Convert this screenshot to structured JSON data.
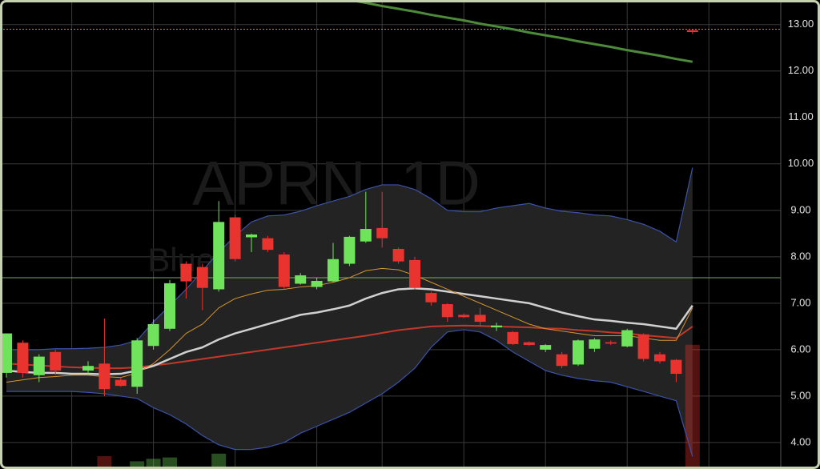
{
  "chart_data": {
    "type": "candlestick",
    "title": "APRN, 1D",
    "subtitle": "Blue Apron Holdings, Inc.",
    "up_color": "#6fe35b",
    "down_color": "#e8332f",
    "open": [
      5.5,
      6.15,
      5.45,
      5.95,
      null,
      5.55,
      5.7,
      5.35,
      5.2,
      6.08,
      6.45,
      7.85,
      7.78,
      7.3,
      8.85,
      8.42,
      8.4,
      8.05,
      7.42,
      7.35,
      7.47,
      7.85,
      8.33,
      8.62,
      8.17,
      7.93,
      7.22,
      6.98,
      6.75,
      6.75,
      6.48,
      6.38,
      6.16,
      6.0,
      5.9,
      5.68,
      6.02,
      6.16,
      6.07,
      6.33,
      5.9,
      5.78,
      12.88
    ],
    "high": [
      6.35,
      6.2,
      5.9,
      6.0,
      null,
      5.75,
      6.67,
      5.4,
      6.25,
      6.65,
      7.5,
      7.9,
      7.85,
      9.2,
      8.9,
      8.5,
      8.45,
      8.1,
      7.65,
      7.55,
      8.3,
      8.45,
      9.4,
      9.4,
      8.2,
      8.0,
      7.25,
      7.0,
      6.78,
      6.9,
      6.58,
      6.4,
      6.18,
      6.12,
      5.95,
      6.22,
      6.25,
      6.2,
      6.45,
      6.35,
      5.95,
      5.8,
      12.9
    ],
    "low": [
      5.4,
      5.4,
      5.3,
      5.45,
      null,
      5.45,
      5.0,
      5.2,
      5.05,
      6.0,
      6.4,
      7.1,
      6.85,
      7.25,
      7.9,
      8.1,
      8.1,
      7.3,
      7.4,
      7.3,
      7.45,
      7.8,
      8.3,
      8.2,
      7.85,
      7.3,
      6.95,
      6.6,
      6.68,
      6.5,
      6.4,
      6.1,
      6.08,
      5.95,
      5.6,
      5.65,
      5.95,
      6.1,
      6.05,
      5.75,
      5.7,
      5.3,
      12.8
    ],
    "close": [
      6.35,
      5.5,
      5.85,
      5.55,
      null,
      5.65,
      5.15,
      5.22,
      6.2,
      6.55,
      7.43,
      7.47,
      7.33,
      8.75,
      7.95,
      8.48,
      8.15,
      7.35,
      7.6,
      7.48,
      7.95,
      8.43,
      8.6,
      8.4,
      7.9,
      7.33,
      7.02,
      6.7,
      6.7,
      6.6,
      6.52,
      6.12,
      6.1,
      6.1,
      5.65,
      6.2,
      6.22,
      6.13,
      6.42,
      5.8,
      5.75,
      5.48,
      12.84
    ],
    "band_color": "#232323",
    "series": [
      {
        "color": "#3b52a8",
        "width": 1.2,
        "values": [
          6.0,
          6.0,
          6.0,
          6.02,
          6.02,
          6.03,
          6.05,
          6.1,
          6.2,
          6.6,
          6.95,
          7.3,
          7.7,
          8.1,
          8.45,
          8.75,
          8.88,
          8.9,
          8.98,
          9.1,
          9.2,
          9.3,
          9.45,
          9.55,
          9.55,
          9.45,
          9.25,
          9.0,
          8.97,
          8.97,
          9.05,
          9.1,
          9.15,
          9.05,
          8.98,
          8.95,
          8.9,
          8.88,
          8.8,
          8.7,
          8.55,
          8.32,
          9.92
        ]
      },
      {
        "color": "#3b52a8",
        "width": 1.2,
        "values": [
          5.1,
          5.1,
          5.1,
          5.1,
          5.1,
          5.08,
          5.05,
          5.0,
          4.95,
          4.75,
          4.6,
          4.4,
          4.15,
          3.95,
          3.85,
          3.85,
          3.9,
          4.0,
          4.2,
          4.35,
          4.5,
          4.65,
          4.85,
          5.05,
          5.3,
          5.6,
          6.05,
          6.38,
          6.43,
          6.38,
          6.2,
          5.95,
          5.75,
          5.55,
          5.45,
          5.38,
          5.33,
          5.3,
          5.2,
          5.1,
          5.0,
          4.9,
          3.7
        ]
      },
      {
        "color": "#c0392b",
        "width": 2,
        "values": [
          5.7,
          5.68,
          5.66,
          5.64,
          5.62,
          5.61,
          5.6,
          5.6,
          5.62,
          5.66,
          5.7,
          5.75,
          5.8,
          5.85,
          5.9,
          5.95,
          6.0,
          6.05,
          6.1,
          6.15,
          6.2,
          6.25,
          6.3,
          6.36,
          6.42,
          6.46,
          6.5,
          6.51,
          6.52,
          6.51,
          6.5,
          6.49,
          6.48,
          6.46,
          6.45,
          6.42,
          6.4,
          6.37,
          6.35,
          6.31,
          6.28,
          6.25,
          6.5
        ]
      },
      {
        "color": "#d0d0d0",
        "width": 2.5,
        "values": [
          5.55,
          5.52,
          5.5,
          5.5,
          5.48,
          5.48,
          5.47,
          5.48,
          5.55,
          5.65,
          5.8,
          5.95,
          6.05,
          6.22,
          6.35,
          6.45,
          6.55,
          6.65,
          6.75,
          6.8,
          6.87,
          6.95,
          7.1,
          7.22,
          7.3,
          7.32,
          7.3,
          7.25,
          7.2,
          7.15,
          7.1,
          7.05,
          7.0,
          6.9,
          6.8,
          6.72,
          6.65,
          6.62,
          6.58,
          6.55,
          6.5,
          6.45,
          6.95
        ]
      },
      {
        "color": "#d7952f",
        "width": 1,
        "values": [
          5.3,
          5.35,
          5.4,
          5.42,
          5.45,
          5.45,
          5.42,
          5.4,
          5.5,
          5.7,
          6.0,
          6.35,
          6.55,
          6.9,
          7.1,
          7.2,
          7.28,
          7.3,
          7.35,
          7.38,
          7.45,
          7.55,
          7.7,
          7.75,
          7.72,
          7.6,
          7.45,
          7.3,
          7.15,
          7.0,
          6.85,
          6.7,
          6.55,
          6.45,
          6.4,
          6.35,
          6.3,
          6.3,
          6.3,
          6.25,
          6.2,
          6.2,
          6.9
        ]
      },
      {
        "color": "#4d8a3a",
        "width": 3,
        "values": [
          null,
          null,
          null,
          null,
          null,
          null,
          null,
          null,
          null,
          null,
          null,
          null,
          null,
          null,
          null,
          null,
          null,
          null,
          null,
          null,
          null,
          13.53,
          13.47,
          13.4,
          13.34,
          13.28,
          13.21,
          13.15,
          13.09,
          13.02,
          12.96,
          12.9,
          12.83,
          12.77,
          12.71,
          12.64,
          12.58,
          12.52,
          12.45,
          12.39,
          12.33,
          12.26,
          12.2
        ]
      }
    ],
    "levels": [
      {
        "value": 12.9,
        "color": "#e0802a",
        "dash": true
      },
      {
        "value": 7.55,
        "color": "#7fa86a",
        "dash": false
      }
    ],
    "volume": [
      0,
      0,
      0,
      0,
      0,
      0,
      10,
      0,
      6,
      8,
      9,
      0,
      0,
      12,
      0,
      0,
      0,
      0,
      0,
      0,
      0,
      0,
      0,
      0,
      0,
      0,
      0,
      0,
      0,
      0,
      0,
      0,
      0,
      0,
      0,
      0,
      0,
      0,
      0,
      0,
      0,
      0,
      97
    ],
    "volume_lim": [
      0,
      100
    ],
    "ylim": [
      3.43,
      13.53
    ],
    "yticks": [
      {
        "value": 4,
        "label": "4.00"
      },
      {
        "value": 5,
        "label": "5.00"
      },
      {
        "value": 6,
        "label": "6.00"
      },
      {
        "value": 7,
        "label": "7.00"
      },
      {
        "value": 8,
        "label": "8.00"
      },
      {
        "value": 9,
        "label": "9.00"
      },
      {
        "value": 10,
        "label": "10.00"
      },
      {
        "value": 11,
        "label": "11.00"
      },
      {
        "value": 12,
        "label": "12.00"
      },
      {
        "value": 13,
        "label": "13.00"
      }
    ],
    "xgrid": [
      4,
      9,
      14,
      19,
      23,
      28,
      33,
      38,
      43
    ],
    "grid": true
  }
}
